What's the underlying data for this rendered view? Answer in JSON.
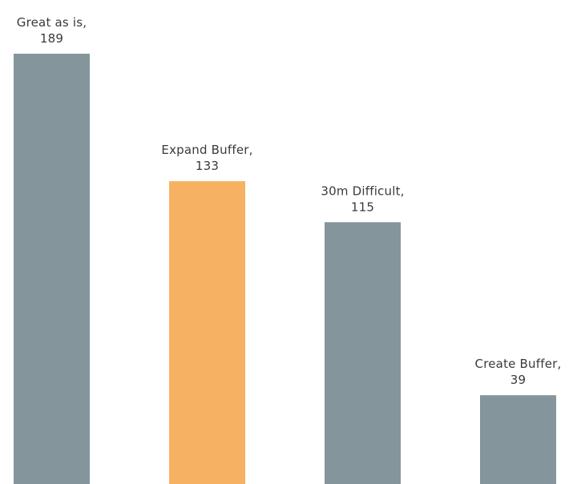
{
  "chart_data": {
    "type": "bar",
    "categories": [
      "Great as is",
      "Expand Buffer",
      "30m Difficult",
      "Create Buffer"
    ],
    "values": [
      189,
      133,
      115,
      39
    ],
    "data_labels": [
      [
        "Great as is,",
        "189"
      ],
      [
        "Expand Buffer,",
        "133"
      ],
      [
        "30m Difficult,",
        "115"
      ],
      [
        "Create Buffer,",
        "39"
      ]
    ],
    "colors": [
      "#85959c",
      "#f7b162",
      "#85959c",
      "#85959c"
    ],
    "highlight_index": 1,
    "title": "",
    "xlabel": "",
    "ylabel": "",
    "ylim": [
      0,
      189
    ],
    "grid": false,
    "legend": "none"
  }
}
